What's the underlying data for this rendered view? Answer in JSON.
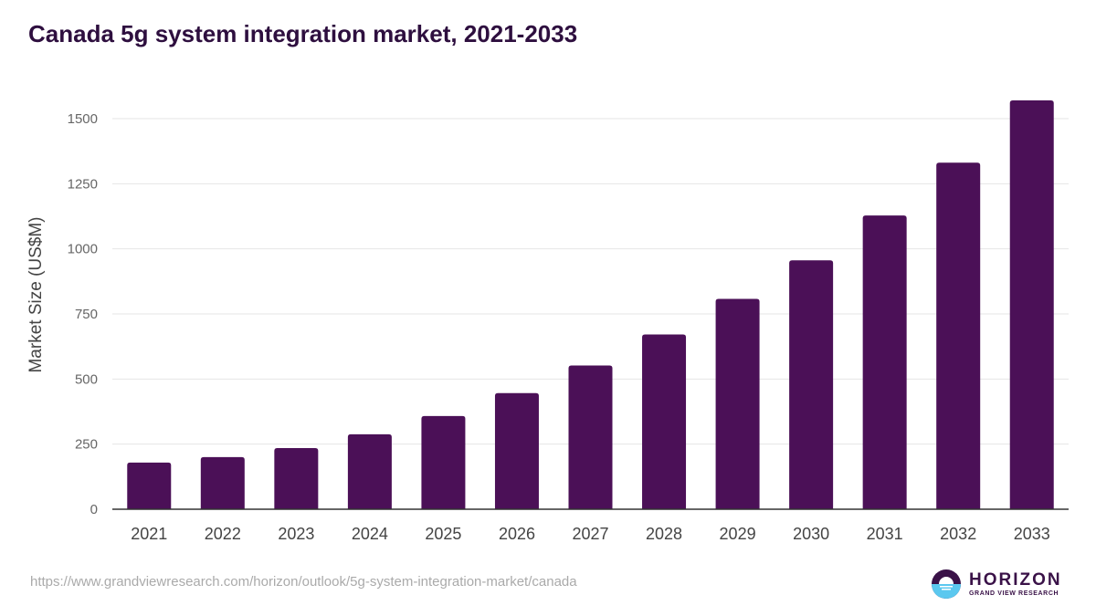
{
  "chart_data": {
    "type": "bar",
    "title": "Canada 5g system integration market, 2021-2033",
    "xlabel": "",
    "ylabel": "Market Size (US$M)",
    "categories": [
      "2021",
      "2022",
      "2023",
      "2024",
      "2025",
      "2026",
      "2027",
      "2028",
      "2029",
      "2030",
      "2031",
      "2032",
      "2033"
    ],
    "values": [
      179,
      200,
      235,
      288,
      358,
      446,
      552,
      671,
      808,
      956,
      1128,
      1331,
      1570
    ],
    "ylim": [
      0,
      1500
    ],
    "yticks": [
      0,
      250,
      500,
      750,
      1000,
      1250,
      1500
    ],
    "grid": true,
    "bar_color": "#4b1057"
  },
  "footer": {
    "source_url": "https://www.grandviewresearch.com/horizon/outlook/5g-system-integration-market/canada",
    "logo_main": "HORIZON",
    "logo_sub": "GRAND VIEW RESEARCH"
  }
}
